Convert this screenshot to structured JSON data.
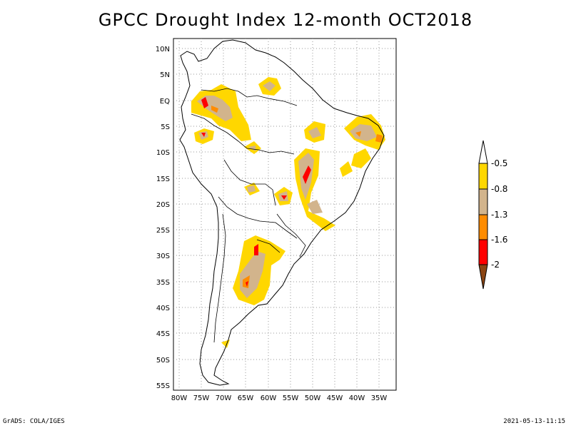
{
  "title": "GPCC Drought Index 12-month OCT2018",
  "footer": {
    "left": "GrADS: COLA/IGES",
    "right": "2021-05-13-11:15"
  },
  "map": {
    "lat_ticks": [
      "10N",
      "5N",
      "EQ",
      "5S",
      "10S",
      "15S",
      "20S",
      "25S",
      "30S",
      "35S",
      "40S",
      "45S",
      "50S",
      "55S"
    ],
    "lon_ticks": [
      "80W",
      "75W",
      "70W",
      "65W",
      "60W",
      "55W",
      "50W",
      "45W",
      "40W",
      "35W"
    ],
    "extent": {
      "lon": [
        -81,
        -32
      ],
      "lat": [
        -56,
        12
      ]
    },
    "grid": "dotted"
  },
  "colorbar": {
    "labels": [
      "-0.5",
      "-0.8",
      "-1.3",
      "-1.6",
      "-2"
    ],
    "colors": {
      "white": "#ffffff",
      "yellow": "#ffd700",
      "tan": "#d2b48c",
      "orange": "#ff8c00",
      "red": "#ff0000",
      "brown": "#8b4513"
    }
  },
  "regions_legend": {
    "yellow": "-0.5",
    "tan": "-0.8",
    "orange": "-1.3",
    "red": "-1.6",
    "brown": "-2"
  }
}
